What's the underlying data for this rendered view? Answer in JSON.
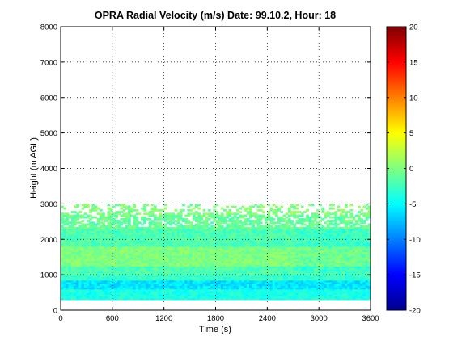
{
  "chart_data": {
    "type": "heatmap",
    "title": "OPRA Radial Velocity (m/s)  Date: 99.10.2, Hour: 18",
    "xlabel": "Time (s)",
    "ylabel": "Height (m AGL)",
    "xlim": [
      0,
      3600
    ],
    "ylim": [
      0,
      8000
    ],
    "xticks": [
      "0",
      "600",
      "1200",
      "1800",
      "2400",
      "3000",
      "3600"
    ],
    "yticks": [
      "0",
      "1000",
      "2000",
      "3000",
      "4000",
      "5000",
      "6000",
      "7000",
      "8000"
    ],
    "grid": "dotted",
    "colormap": "jet",
    "colorbar": {
      "range": [
        -20,
        20
      ],
      "ticks": [
        "-20",
        "-15",
        "-10",
        "-5",
        "0",
        "5",
        "10",
        "15",
        "20"
      ]
    },
    "data_extent": {
      "time_range_s": [
        0,
        3600
      ],
      "height_range_m": [
        300,
        3000
      ]
    },
    "velocity_layers": [
      {
        "height_from_m": 300,
        "height_to_m": 600,
        "velocity_ms": -4
      },
      {
        "height_from_m": 600,
        "height_to_m": 850,
        "velocity_ms": -6
      },
      {
        "height_from_m": 850,
        "height_to_m": 1000,
        "velocity_ms": -3
      },
      {
        "height_from_m": 1000,
        "height_to_m": 1250,
        "velocity_ms": -2
      },
      {
        "height_from_m": 1250,
        "height_to_m": 1800,
        "velocity_ms": 0
      },
      {
        "height_from_m": 1800,
        "height_to_m": 2300,
        "velocity_ms": -2
      },
      {
        "height_from_m": 2300,
        "height_to_m": 2700,
        "velocity_ms": -1
      },
      {
        "height_from_m": 2700,
        "height_to_m": 3000,
        "velocity_ms": 0
      }
    ]
  }
}
